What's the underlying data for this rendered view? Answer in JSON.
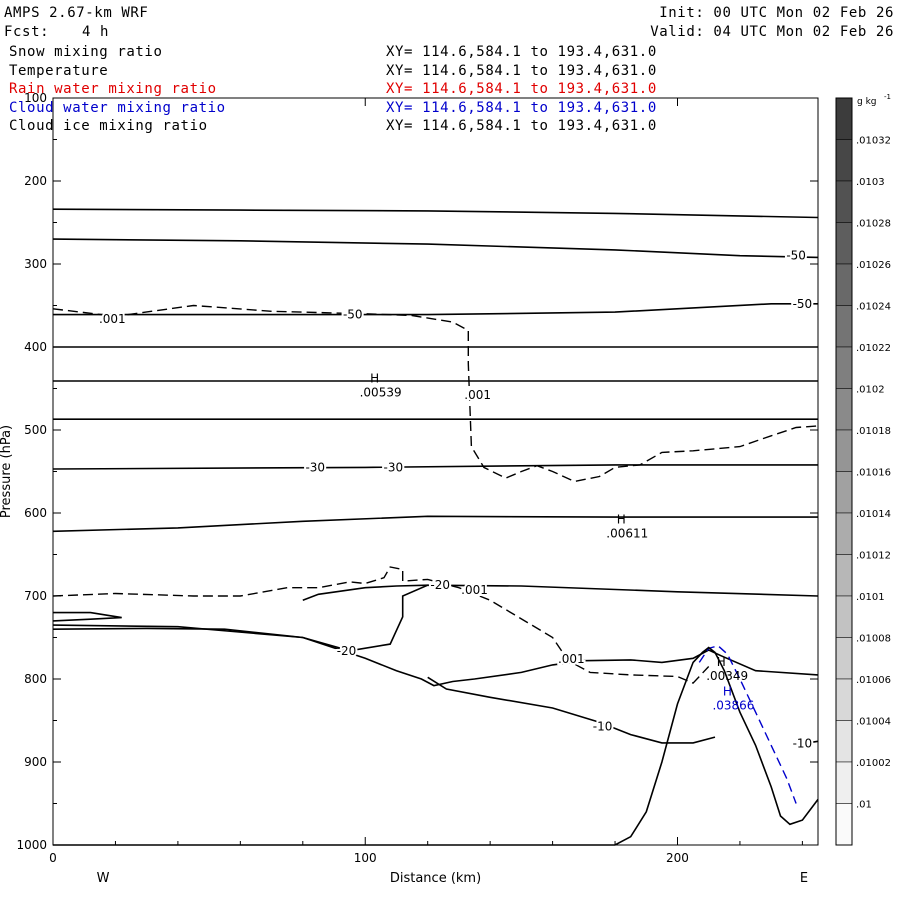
{
  "header": {
    "model": "AMPS 2.67-km WRF",
    "init": "Init: 00 UTC Mon 02 Feb 26",
    "fcst_label": "Fcst:",
    "fcst_value": "4 h",
    "valid": "Valid: 04 UTC Mon 02 Feb 26"
  },
  "fields": [
    {
      "name": "Snow mixing ratio",
      "xy": "XY= 114.6,584.1 to 193.4,631.0",
      "color": "#000000"
    },
    {
      "name": "Temperature",
      "xy": "XY= 114.6,584.1 to 193.4,631.0",
      "color": "#000000"
    },
    {
      "name": "Rain water mixing ratio",
      "xy": "XY= 114.6,584.1 to 193.4,631.0",
      "color": "#e00000"
    },
    {
      "name": "Cloud water mixing ratio",
      "xy": "XY= 114.6,584.1 to 193.4,631.0",
      "color": "#0000cc"
    },
    {
      "name": "Cloud ice mixing ratio",
      "xy": "XY= 114.6,584.1 to 193.4,631.0",
      "color": "#000000"
    }
  ],
  "chart_data": {
    "type": "cross-section contour",
    "xlabel": "Distance (km)",
    "ylabel": "Pressure (hPa)",
    "xlim": [
      0,
      245
    ],
    "ylim": [
      1000,
      100
    ],
    "x_ticks": [
      0,
      100,
      200
    ],
    "y_ticks": [
      100,
      200,
      300,
      400,
      500,
      600,
      700,
      800,
      900,
      1000
    ],
    "x_end_labels": {
      "left": "W",
      "right": "E"
    },
    "colorbar": {
      "unit": "g kg",
      "unit_exp": "-1",
      "labels": [
        ".01032",
        ".0103",
        ".01028",
        ".01026",
        ".01024",
        ".01022",
        ".0102",
        ".01018",
        ".01016",
        ".01014",
        ".01012",
        ".0101",
        ".01008",
        ".01006",
        ".01004",
        ".01002",
        ".01"
      ]
    },
    "terrain": [
      [
        0,
        1000
      ],
      [
        180,
        1000
      ],
      [
        185,
        990
      ],
      [
        190,
        960
      ],
      [
        195,
        900
      ],
      [
        200,
        830
      ],
      [
        205,
        780
      ],
      [
        208,
        768
      ],
      [
        210,
        762
      ],
      [
        212,
        768
      ],
      [
        215,
        790
      ],
      [
        220,
        840
      ],
      [
        225,
        880
      ],
      [
        230,
        930
      ],
      [
        233,
        965
      ],
      [
        236,
        975
      ],
      [
        240,
        970
      ],
      [
        243,
        955
      ],
      [
        245,
        945
      ],
      [
        245,
        1000
      ]
    ],
    "temperature_contours": [
      {
        "points": [
          [
            0,
            234
          ],
          [
            60,
            235
          ],
          [
            120,
            236
          ],
          [
            180,
            239
          ],
          [
            245,
            244
          ]
        ],
        "labels": []
      },
      {
        "points": [
          [
            0,
            270
          ],
          [
            60,
            272
          ],
          [
            120,
            276
          ],
          [
            180,
            283
          ],
          [
            220,
            290
          ],
          [
            245,
            292
          ]
        ],
        "labels": [
          {
            "x": 238,
            "p": 290,
            "text": "-50"
          }
        ]
      },
      {
        "points": [
          [
            0,
            361
          ],
          [
            60,
            361
          ],
          [
            120,
            361
          ],
          [
            180,
            358
          ],
          [
            230,
            348
          ],
          [
            245,
            348
          ]
        ],
        "labels": [
          {
            "x": 96,
            "p": 361,
            "text": "-50"
          },
          {
            "x": 240,
            "p": 348,
            "text": "-50"
          }
        ]
      },
      {
        "points": [
          [
            0,
            400
          ],
          [
            245,
            400
          ]
        ],
        "labels": []
      },
      {
        "points": [
          [
            0,
            441
          ],
          [
            245,
            441
          ]
        ],
        "labels": []
      },
      {
        "points": [
          [
            0,
            487
          ],
          [
            245,
            487
          ]
        ],
        "labels": []
      },
      {
        "points": [
          [
            0,
            547
          ],
          [
            100,
            545
          ],
          [
            180,
            542
          ],
          [
            245,
            542
          ]
        ],
        "labels": [
          {
            "x": 84,
            "p": 545,
            "text": "-30"
          },
          {
            "x": 109,
            "p": 545,
            "text": "-30"
          }
        ]
      },
      {
        "points": [
          [
            0,
            622
          ],
          [
            40,
            618
          ],
          [
            80,
            610
          ],
          [
            120,
            604
          ],
          [
            180,
            605
          ],
          [
            245,
            605
          ]
        ],
        "labels": []
      },
      {
        "points": [
          [
            0,
            740
          ],
          [
            30,
            739
          ],
          [
            55,
            740
          ],
          [
            80,
            750
          ],
          [
            95,
            766
          ],
          [
            108,
            758
          ],
          [
            112,
            725
          ],
          [
            112,
            700
          ],
          [
            120,
            687
          ],
          [
            150,
            688
          ],
          [
            200,
            695
          ],
          [
            245,
            700
          ]
        ],
        "labels": [
          {
            "x": 124,
            "p": 687,
            "text": "-20"
          },
          {
            "x": 94,
            "p": 766,
            "text": "-20"
          }
        ]
      },
      {
        "points": [
          [
            80,
            705
          ],
          [
            85,
            698
          ],
          [
            100,
            690
          ],
          [
            110,
            688
          ],
          [
            120,
            687
          ]
        ],
        "labels": []
      },
      {
        "points": [
          [
            0,
            720
          ],
          [
            12,
            720
          ],
          [
            22,
            726
          ],
          [
            12,
            728
          ],
          [
            0,
            730
          ]
        ],
        "labels": []
      },
      {
        "points": [
          [
            0,
            735
          ],
          [
            40,
            737
          ],
          [
            80,
            750
          ],
          [
            100,
            775
          ],
          [
            110,
            790
          ],
          [
            118,
            800
          ],
          [
            122,
            808
          ],
          [
            128,
            803
          ],
          [
            135,
            800
          ],
          [
            150,
            792
          ],
          [
            160,
            783
          ],
          [
            170,
            778
          ],
          [
            185,
            777
          ],
          [
            195,
            780
          ],
          [
            205,
            775
          ],
          [
            210,
            765
          ],
          [
            214,
            772
          ],
          [
            225,
            790
          ],
          [
            245,
            795
          ]
        ],
        "labels": []
      },
      {
        "points": [
          [
            120,
            798
          ],
          [
            126,
            812
          ],
          [
            140,
            822
          ],
          [
            160,
            835
          ],
          [
            175,
            852
          ],
          [
            185,
            867
          ],
          [
            195,
            877
          ],
          [
            205,
            877
          ],
          [
            212,
            870
          ]
        ],
        "labels": [
          {
            "x": 176,
            "p": 857,
            "text": "-10"
          }
        ]
      },
      {
        "points": [
          [
            240,
            878
          ],
          [
            245,
            875
          ]
        ],
        "labels": [
          {
            "x": 240,
            "p": 878,
            "text": "-10"
          }
        ]
      }
    ],
    "cloud_ice_0p001": {
      "points": [
        [
          0,
          354
        ],
        [
          20,
          363
        ],
        [
          45,
          350
        ],
        [
          70,
          357
        ],
        [
          100,
          360
        ],
        [
          115,
          362
        ],
        [
          128,
          370
        ],
        [
          133,
          380
        ],
        [
          133,
          420
        ],
        [
          134,
          520
        ],
        [
          138,
          545
        ],
        [
          145,
          558
        ],
        [
          150,
          550
        ],
        [
          155,
          543
        ],
        [
          160,
          550
        ],
        [
          167,
          562
        ],
        [
          175,
          556
        ],
        [
          180,
          545
        ],
        [
          188,
          542
        ],
        [
          195,
          527
        ],
        [
          205,
          525
        ],
        [
          220,
          520
        ],
        [
          230,
          507
        ],
        [
          238,
          497
        ],
        [
          245,
          495
        ]
      ],
      "labels": [
        {
          "x": 19,
          "p": 366,
          "text": ".001"
        },
        {
          "x": 136,
          "p": 458,
          "text": ".001"
        }
      ]
    },
    "snow_0p001": {
      "points": [
        [
          0,
          700
        ],
        [
          20,
          697
        ],
        [
          45,
          700
        ],
        [
          60,
          700
        ],
        [
          75,
          690
        ],
        [
          85,
          690
        ],
        [
          95,
          683
        ],
        [
          100,
          685
        ],
        [
          106,
          678
        ],
        [
          108,
          665
        ],
        [
          112,
          668
        ],
        [
          112,
          682
        ],
        [
          120,
          680
        ],
        [
          130,
          690
        ],
        [
          140,
          705
        ],
        [
          160,
          750
        ],
        [
          165,
          778
        ],
        [
          172,
          792
        ],
        [
          185,
          795
        ],
        [
          200,
          797
        ],
        [
          205,
          805
        ],
        [
          210,
          785
        ]
      ],
      "labels": [
        {
          "x": 135,
          "p": 693,
          "text": ".001"
        },
        {
          "x": 166,
          "p": 776,
          "text": ".001"
        }
      ]
    },
    "cloud_water_contour": {
      "points": [
        [
          207,
          780
        ],
        [
          210,
          763
        ],
        [
          213,
          760
        ],
        [
          216,
          770
        ],
        [
          220,
          800
        ],
        [
          225,
          840
        ],
        [
          230,
          880
        ],
        [
          235,
          920
        ],
        [
          238,
          950
        ]
      ],
      "color": "#0000cc"
    },
    "maxima": [
      {
        "x": 103,
        "p": 445,
        "letter": "H",
        "value": ".00539",
        "color": "#000000"
      },
      {
        "x": 182,
        "p": 615,
        "letter": "H",
        "value": ".00611",
        "color": "#000000"
      },
      {
        "x": 214,
        "p": 787,
        "letter": "H",
        "value": ".00349",
        "color": "#000000"
      },
      {
        "x": 216,
        "p": 822,
        "letter": "H",
        "value": ".03866",
        "color": "#0000cc"
      }
    ]
  }
}
